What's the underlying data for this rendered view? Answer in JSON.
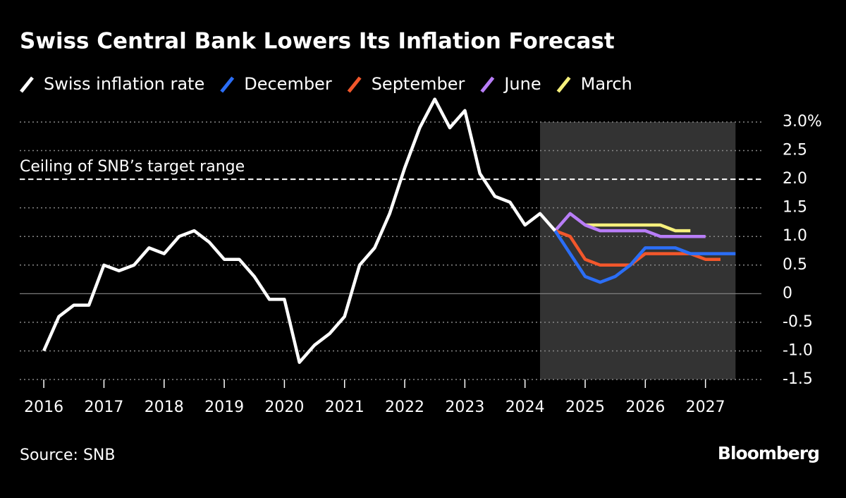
{
  "chart_data": {
    "type": "line",
    "title": "Swiss Central Bank Lowers Its Inflation Forecast",
    "source": "Source: SNB",
    "brand": "Bloomberg",
    "reference_line": {
      "value": 2,
      "label": "Ceiling of SNB’s target range"
    },
    "shaded_xrange": [
      2024.25,
      2027.5
    ],
    "xlim": [
      2015.6,
      2027.93
    ],
    "xticks": [
      2016,
      2017,
      2018,
      2019,
      2020,
      2021,
      2022,
      2023,
      2024,
      2025,
      2026,
      2027
    ],
    "ylim": [
      -1.5,
      3.0
    ],
    "yticks": [
      {
        "value": 3,
        "label": "3.0%"
      },
      2.5,
      {
        "value": 2,
        "label": "2.0"
      },
      1.5,
      {
        "value": 1,
        "label": "1.0"
      },
      0.5,
      0,
      -0.5,
      {
        "value": -1,
        "label": "-1.0"
      },
      -1.5
    ],
    "grid": true,
    "series": [
      {
        "name": "Swiss inflation rate",
        "color": "#ffffff",
        "x": [
          2016,
          2016.25,
          2016.5,
          2016.75,
          2017,
          2017.25,
          2017.5,
          2017.75,
          2018,
          2018.25,
          2018.5,
          2018.75,
          2019,
          2019.25,
          2019.5,
          2019.75,
          2020,
          2020.25,
          2020.5,
          2020.75,
          2021,
          2021.25,
          2021.5,
          2021.75,
          2022,
          2022.25,
          2022.5,
          2022.75,
          2023,
          2023.25,
          2023.5,
          2023.75,
          2024,
          2024.25,
          2024.5
        ],
        "values": [
          -1.0,
          -0.4,
          -0.2,
          -0.2,
          0.5,
          0.4,
          0.5,
          0.8,
          0.7,
          1.0,
          1.1,
          0.9,
          0.6,
          0.6,
          0.3,
          -0.1,
          -0.1,
          -1.2,
          -0.9,
          -0.7,
          -0.4,
          0.5,
          0.8,
          1.4,
          2.2,
          2.9,
          3.4,
          2.9,
          3.2,
          2.1,
          1.7,
          1.6,
          1.2,
          1.4,
          1.1
        ]
      },
      {
        "name": "December",
        "color": "#2b6ef6",
        "x": [
          2024.5,
          2024.75,
          2025,
          2025.25,
          2025.5,
          2025.75,
          2026,
          2026.25,
          2026.5,
          2026.75,
          2027,
          2027.25,
          2027.5
        ],
        "values": [
          1.1,
          0.7,
          0.3,
          0.2,
          0.3,
          0.5,
          0.8,
          0.8,
          0.8,
          0.7,
          0.7,
          0.7,
          0.7
        ]
      },
      {
        "name": "September",
        "color": "#f2572b",
        "x": [
          2024.5,
          2024.75,
          2025,
          2025.25,
          2025.5,
          2025.75,
          2026,
          2026.25,
          2026.5,
          2026.75,
          2027,
          2027.25
        ],
        "values": [
          1.1,
          1.0,
          0.6,
          0.5,
          0.5,
          0.5,
          0.7,
          0.7,
          0.7,
          0.7,
          0.6,
          0.6
        ]
      },
      {
        "name": "June",
        "color": "#b87df7",
        "x": [
          2024.5,
          2024.75,
          2025,
          2025.25,
          2025.5,
          2025.75,
          2026,
          2026.25,
          2026.5,
          2026.75,
          2027
        ],
        "values": [
          1.1,
          1.4,
          1.2,
          1.1,
          1.1,
          1.1,
          1.1,
          1.0,
          1.0,
          1.0,
          1.0
        ]
      },
      {
        "name": "March",
        "color": "#f6f07c",
        "x": [
          2025,
          2025.25,
          2025.5,
          2025.75,
          2026,
          2026.25,
          2026.5,
          2026.75
        ],
        "values": [
          1.2,
          1.2,
          1.2,
          1.2,
          1.2,
          1.2,
          1.1,
          1.1
        ]
      }
    ]
  }
}
